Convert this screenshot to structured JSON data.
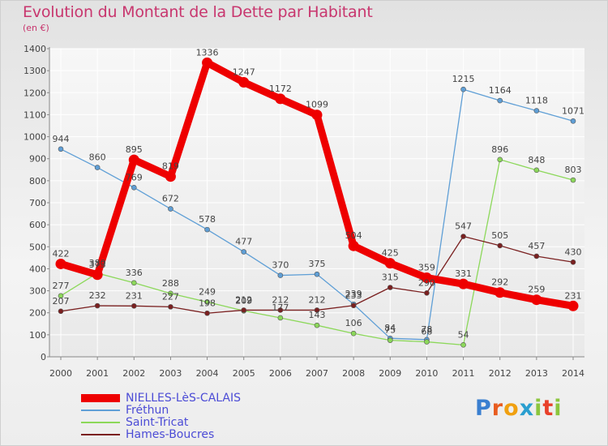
{
  "header": {
    "title": "Evolution du Montant de la Dette par Habitant",
    "subtitle": "(en €)"
  },
  "logo": {
    "text": "Proxiti",
    "colors": [
      "#3a7fd0",
      "#e85c20",
      "#f0a010",
      "#2a9fd0",
      "#8cc63e",
      "#e8402a",
      "#8cc63e"
    ]
  },
  "chart_data": {
    "type": "line",
    "title": "Evolution du Montant de la Dette par Habitant",
    "subtitle": "(en €)",
    "x": [
      "2000",
      "2001",
      "2002",
      "2003",
      "2004",
      "2005",
      "2006",
      "2007",
      "2008",
      "2009",
      "2010",
      "2011",
      "2012",
      "2013",
      "2014"
    ],
    "ylim": [
      0,
      1400
    ],
    "yticks": [
      0,
      100,
      200,
      300,
      400,
      500,
      600,
      700,
      800,
      900,
      1000,
      1100,
      1200,
      1300,
      1400
    ],
    "grid": true,
    "legend_position": "bottom-left",
    "series": [
      {
        "name": "NIELLES-LèS-CALAIS",
        "color": "#ee0000",
        "emphasis": true,
        "values": [
          422,
          373,
          895,
          819,
          1336,
          1247,
          1172,
          1099,
          504,
          425,
          359,
          331,
          292,
          259,
          231
        ],
        "labels": [
          "422",
          "373",
          "895",
          "819",
          "1336",
          "1247",
          "1172",
          "1099",
          "504",
          "425",
          "359",
          "331",
          "292",
          "259",
          "231"
        ]
      },
      {
        "name": "Fréthun",
        "color": "#5f9fd6",
        "values": [
          944,
          860,
          769,
          672,
          578,
          477,
          370,
          375,
          239,
          84,
          78,
          1215,
          1164,
          1118,
          1071
        ],
        "labels": [
          "944",
          "860",
          "769",
          "672",
          "578",
          "477",
          "370",
          "375",
          "239",
          "84",
          "78",
          "1215",
          "1164",
          "1118",
          "1071"
        ]
      },
      {
        "name": "Saint-Tricat",
        "color": "#8cd85a",
        "values": [
          277,
          380,
          336,
          288,
          249,
          209,
          177,
          143,
          106,
          75,
          68,
          54,
          896,
          848,
          803
        ],
        "labels": [
          "277",
          "380",
          "336",
          "288",
          "249",
          "209",
          "177",
          "143",
          "106",
          "75",
          "68",
          "54",
          "896",
          "848",
          "803"
        ]
      },
      {
        "name": "Hames-Boucres",
        "color": "#7a2020",
        "values": [
          207,
          232,
          231,
          227,
          198,
          212,
          212,
          212,
          233,
          315,
          290,
          547,
          505,
          457,
          430
        ],
        "labels": [
          "207",
          "232",
          "231",
          "227",
          "198",
          "212",
          "212",
          "212",
          "233",
          "315",
          "290",
          "547",
          "505",
          "457",
          "430"
        ]
      }
    ]
  }
}
